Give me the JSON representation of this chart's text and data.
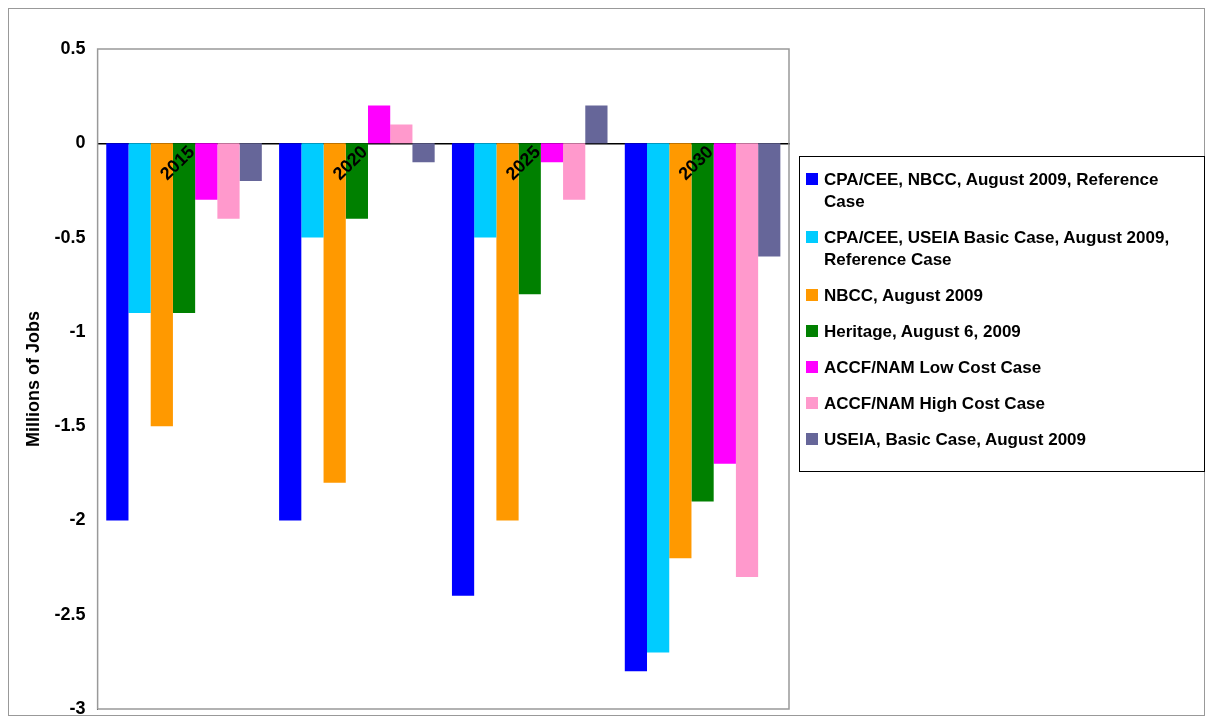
{
  "chart_data": {
    "type": "bar",
    "ylabel": "Millions of Jobs",
    "categories": [
      "2015",
      "2020",
      "2025",
      "2030"
    ],
    "series": [
      {
        "name": "CPA/CEE, NBCC, August 2009, Reference Case",
        "color": "#0000ff",
        "values": [
          -2,
          -2,
          -2.4,
          -2.8
        ]
      },
      {
        "name": "CPA/CEE, USEIA Basic Case, August 2009, Reference Case",
        "color": "#00ccff",
        "values": [
          -0.9,
          -0.5,
          -0.5,
          -2.7
        ]
      },
      {
        "name": "NBCC, August 2009",
        "color": "#ff9900",
        "values": [
          -1.5,
          -1.8,
          -2.0,
          -2.2
        ]
      },
      {
        "name": "Heritage, August 6, 2009",
        "color": "#008000",
        "values": [
          -0.9,
          -0.4,
          -0.8,
          -1.9
        ]
      },
      {
        "name": "ACCF/NAM Low Cost Case",
        "color": "#ff00ff",
        "values": [
          -0.3,
          0.2,
          -0.1,
          -1.7
        ]
      },
      {
        "name": "ACCF/NAM High Cost Case",
        "color": "#ff99cc",
        "values": [
          -0.4,
          0.1,
          -0.3,
          -2.3
        ]
      },
      {
        "name": "USEIA, Basic Case, August 2009",
        "color": "#666699",
        "values": [
          -0.2,
          -0.1,
          0.2,
          -0.6
        ]
      }
    ],
    "ylim": [
      -3,
      0.5
    ],
    "yticks": [
      {
        "value": 0.5,
        "label": "0.5"
      },
      0,
      {
        "value": -0.5,
        "label": "-0.5"
      },
      -1,
      {
        "value": -1.5,
        "label": "-1.5"
      },
      -2,
      {
        "value": -2.5,
        "label": "-2.5"
      },
      -3
    ],
    "grid": false,
    "legend": "right"
  }
}
